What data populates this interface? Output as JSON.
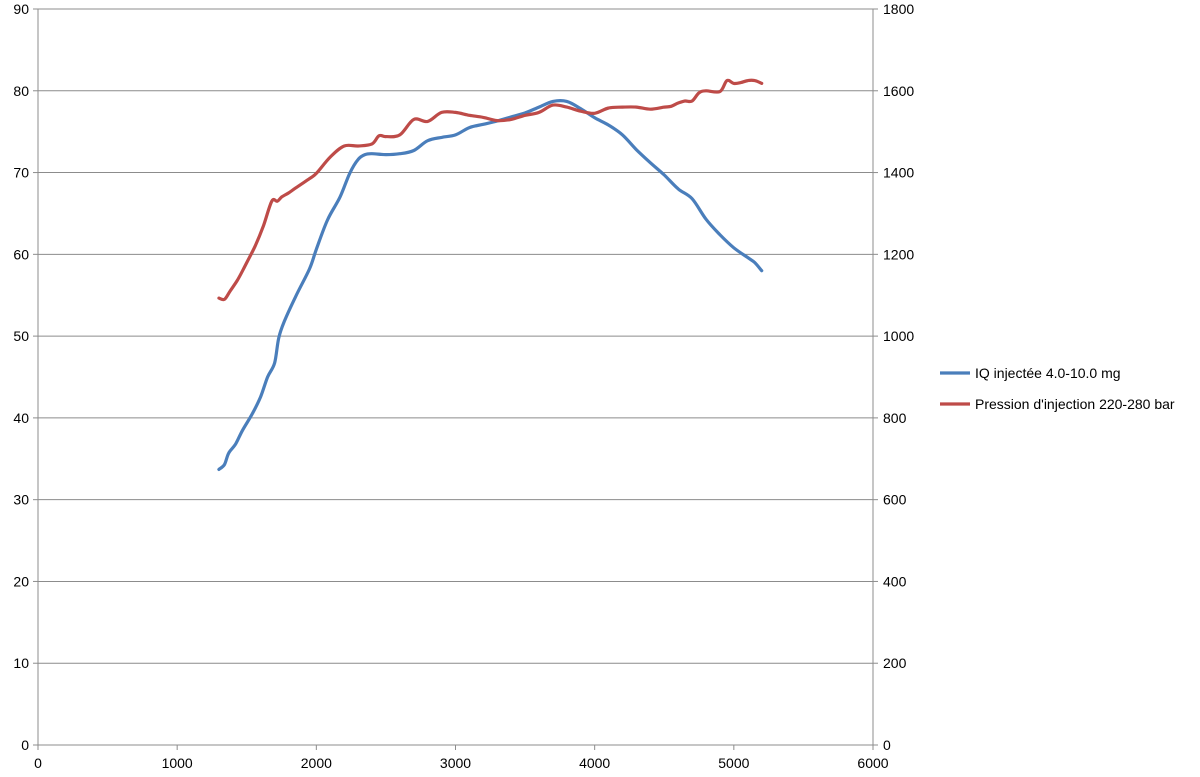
{
  "chart_data": {
    "type": "line",
    "title": "",
    "xlabel": "",
    "ylabel": "",
    "y2label": "",
    "xlim": [
      0,
      6000
    ],
    "ylim": [
      0,
      90
    ],
    "y2lim": [
      0,
      1800
    ],
    "x_ticks": [
      "0",
      "1000",
      "2000",
      "3000",
      "4000",
      "5000",
      "6000"
    ],
    "y_ticks": [
      "0",
      "10",
      "20",
      "30",
      "40",
      "50",
      "60",
      "70",
      "80",
      "90"
    ],
    "y2_ticks": [
      "0",
      "200",
      "400",
      "600",
      "800",
      "1000",
      "1200",
      "1400",
      "1600",
      "1800"
    ],
    "grid": true,
    "legend_position": "right",
    "series": [
      {
        "name": "IQ injectée 4.0-10.0  mg",
        "axis": "left",
        "color": "#4a7ebb",
        "x": [
          1300,
          1340,
          1370,
          1420,
          1470,
          1540,
          1600,
          1650,
          1700,
          1730,
          1770,
          1850,
          1950,
          2000,
          2080,
          2170,
          2240,
          2300,
          2350,
          2400,
          2500,
          2600,
          2700,
          2800,
          2900,
          3000,
          3100,
          3200,
          3300,
          3400,
          3500,
          3600,
          3700,
          3800,
          3900,
          4000,
          4100,
          4200,
          4300,
          4400,
          4500,
          4600,
          4700,
          4800,
          4900,
          5000,
          5100,
          5150,
          5200
        ],
        "y": [
          33.7,
          34.3,
          35.7,
          36.8,
          38.5,
          40.5,
          42.6,
          45.0,
          46.7,
          49.8,
          51.8,
          54.8,
          58.2,
          60.6,
          64.2,
          67.0,
          69.9,
          71.6,
          72.2,
          72.3,
          72.2,
          72.3,
          72.7,
          73.9,
          74.3,
          74.6,
          75.5,
          75.9,
          76.3,
          76.8,
          77.3,
          78.0,
          78.7,
          78.7,
          77.8,
          76.7,
          75.8,
          74.6,
          72.8,
          71.2,
          69.7,
          68.0,
          66.8,
          64.3,
          62.4,
          60.8,
          59.6,
          59.0,
          58.0
        ]
      },
      {
        "name": "Pression d'injection 220-280  bar",
        "axis": "right",
        "color": "#be4b48",
        "x": [
          1300,
          1340,
          1380,
          1430,
          1470,
          1500,
          1560,
          1620,
          1680,
          1720,
          1750,
          1800,
          1850,
          1950,
          2000,
          2100,
          2200,
          2300,
          2400,
          2450,
          2500,
          2600,
          2700,
          2800,
          2900,
          3000,
          3100,
          3200,
          3300,
          3400,
          3500,
          3600,
          3700,
          3800,
          3900,
          4000,
          4100,
          4200,
          4300,
          4400,
          4500,
          4550,
          4600,
          4650,
          4700,
          4750,
          4800,
          4900,
          4950,
          5000,
          5050,
          5100,
          5150,
          5200
        ],
        "y": [
          1093,
          1090,
          1110,
          1135,
          1160,
          1180,
          1220,
          1270,
          1330,
          1330,
          1340,
          1350,
          1362,
          1385,
          1398,
          1438,
          1465,
          1465,
          1470,
          1490,
          1488,
          1492,
          1530,
          1525,
          1547,
          1547,
          1540,
          1535,
          1527,
          1530,
          1540,
          1547,
          1565,
          1560,
          1550,
          1545,
          1558,
          1560,
          1560,
          1555,
          1560,
          1562,
          1570,
          1575,
          1575,
          1595,
          1600,
          1598,
          1625,
          1618,
          1620,
          1625,
          1625,
          1618
        ]
      }
    ]
  }
}
